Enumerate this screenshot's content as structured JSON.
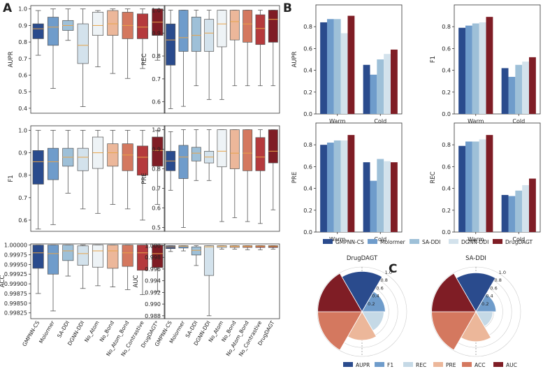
{
  "panel_labels": [
    "A",
    "B",
    "C"
  ],
  "colors": {
    "GMPNN-CS": "#2a4b8d",
    "Molormer": "#6f9ccb",
    "SA-DDI": "#9ec0d8",
    "DGNN-DDI": "#d3e2ec",
    "No_Atom": "#eef3f6",
    "No_Bond": "#ecb79a",
    "No_Atom_Bond": "#d4785f",
    "No_Contrastive": "#b53a3d",
    "DrugDAGT": "#7f1d25",
    "median": "#e8a44a",
    "whisker": "#555555",
    "axis": "#333333",
    "grid": "#cccccc"
  },
  "chart_data": [
    {
      "type": "box",
      "id": "A-AUPR",
      "ylabel": "AUPR",
      "ylim": [
        0.37,
        1.02
      ],
      "yticks": [
        "0.4",
        "0.5",
        "0.6",
        "0.7",
        "0.8",
        "0.9",
        "1.0"
      ],
      "ytick_values": [
        0.4,
        0.5,
        0.6,
        0.7,
        0.8,
        0.9,
        1.0
      ],
      "categories": [],
      "boxes": [
        {
          "name": "GMPNN-CS",
          "min": 0.72,
          "q1": 0.82,
          "median": 0.88,
          "q3": 0.91,
          "max": 0.99
        },
        {
          "name": "Molormer",
          "min": 0.52,
          "q1": 0.78,
          "median": 0.89,
          "q3": 0.95,
          "max": 1.0
        },
        {
          "name": "SA-DDI",
          "min": 0.81,
          "q1": 0.87,
          "median": 0.9,
          "q3": 0.93,
          "max": 1.0
        },
        {
          "name": "DGNN-DDI",
          "min": 0.41,
          "q1": 0.67,
          "median": 0.78,
          "q3": 0.91,
          "max": 1.0
        },
        {
          "name": "No_Atom",
          "min": 0.65,
          "q1": 0.84,
          "median": 0.9,
          "q3": 0.98,
          "max": 0.99
        },
        {
          "name": "No_Bond",
          "min": 0.61,
          "q1": 0.84,
          "median": 0.91,
          "q3": 0.99,
          "max": 1.0
        },
        {
          "name": "No_Atom_Bond",
          "min": 0.58,
          "q1": 0.82,
          "median": 0.9,
          "q3": 0.98,
          "max": 1.0
        },
        {
          "name": "No_Contrastive",
          "min": 0.64,
          "q1": 0.82,
          "median": 0.89,
          "q3": 0.97,
          "max": 1.0
        },
        {
          "name": "DrugDAGT",
          "min": 0.69,
          "q1": 0.84,
          "median": 0.92,
          "q3": 1.0,
          "max": 1.0
        }
      ]
    },
    {
      "type": "box",
      "id": "A-REC",
      "ylabel": "REC",
      "ylim": [
        0.55,
        1.02
      ],
      "yticks": [
        "0.6",
        "0.7",
        "0.8",
        "0.9",
        "1.0"
      ],
      "ytick_values": [
        0.6,
        0.7,
        0.8,
        0.9,
        1.0
      ],
      "categories": [],
      "boxes": [
        {
          "name": "GMPNN-CS",
          "min": 0.57,
          "q1": 0.76,
          "median": 0.87,
          "q3": 0.94,
          "max": 1.0
        },
        {
          "name": "Molormer",
          "min": 0.58,
          "q1": 0.82,
          "median": 0.88,
          "q3": 1.0,
          "max": 1.0
        },
        {
          "name": "SA-DDI",
          "min": 0.67,
          "q1": 0.82,
          "median": 0.89,
          "q3": 0.97,
          "max": 1.0
        },
        {
          "name": "DGNN-DDI",
          "min": 0.61,
          "q1": 0.82,
          "median": 0.9,
          "q3": 0.96,
          "max": 1.0
        },
        {
          "name": "No_Atom",
          "min": 0.61,
          "q1": 0.84,
          "median": 0.94,
          "q3": 1.0,
          "max": 1.0
        },
        {
          "name": "No_Bond",
          "min": 0.67,
          "q1": 0.87,
          "median": 0.95,
          "q3": 1.0,
          "max": 1.0
        },
        {
          "name": "No_Atom_Bond",
          "min": 0.67,
          "q1": 0.86,
          "median": 0.94,
          "q3": 1.0,
          "max": 1.0
        },
        {
          "name": "No_Contrastive",
          "min": 0.67,
          "q1": 0.85,
          "median": 0.92,
          "q3": 0.98,
          "max": 1.0
        },
        {
          "name": "DrugDAGT",
          "min": 0.67,
          "q1": 0.86,
          "median": 0.96,
          "q3": 1.0,
          "max": 1.0
        }
      ]
    },
    {
      "type": "box",
      "id": "A-F1",
      "ylabel": "F1",
      "ylim": [
        0.55,
        1.02
      ],
      "yticks": [
        "0.6",
        "0.7",
        "0.8",
        "0.9",
        "1.0"
      ],
      "ytick_values": [
        0.6,
        0.7,
        0.8,
        0.9,
        1.0
      ],
      "categories": [],
      "boxes": [
        {
          "name": "GMPNN-CS",
          "min": 0.56,
          "q1": 0.76,
          "median": 0.86,
          "q3": 0.91,
          "max": 1.0
        },
        {
          "name": "Molormer",
          "min": 0.58,
          "q1": 0.78,
          "median": 0.86,
          "q3": 0.92,
          "max": 1.0
        },
        {
          "name": "SA-DDI",
          "min": 0.72,
          "q1": 0.84,
          "median": 0.88,
          "q3": 0.92,
          "max": 1.0
        },
        {
          "name": "DGNN-DDI",
          "min": 0.65,
          "q1": 0.82,
          "median": 0.88,
          "q3": 0.92,
          "max": 1.0
        },
        {
          "name": "No_Atom",
          "min": 0.63,
          "q1": 0.83,
          "median": 0.9,
          "q3": 0.97,
          "max": 1.0
        },
        {
          "name": "No_Bond",
          "min": 0.67,
          "q1": 0.84,
          "median": 0.9,
          "q3": 0.94,
          "max": 1.0
        },
        {
          "name": "No_Atom_Bond",
          "min": 0.65,
          "q1": 0.82,
          "median": 0.89,
          "q3": 0.94,
          "max": 1.0
        },
        {
          "name": "No_Contrastive",
          "min": 0.6,
          "q1": 0.8,
          "median": 0.88,
          "q3": 0.93,
          "max": 1.0
        },
        {
          "name": "DrugDAGT",
          "min": 0.67,
          "q1": 0.84,
          "median": 0.91,
          "q3": 0.97,
          "max": 1.0
        }
      ]
    },
    {
      "type": "box",
      "id": "A-PRE",
      "ylabel": "PRE",
      "ylim": [
        0.48,
        1.02
      ],
      "yticks": [
        "0.5",
        "0.6",
        "0.7",
        "0.8",
        "0.9",
        "1.0"
      ],
      "ytick_values": [
        0.5,
        0.6,
        0.7,
        0.8,
        0.9,
        1.0
      ],
      "categories": [],
      "boxes": [
        {
          "name": "GMPNN-CS",
          "min": 0.69,
          "q1": 0.79,
          "median": 0.84,
          "q3": 0.89,
          "max": 0.99
        },
        {
          "name": "Molormer",
          "min": 0.5,
          "q1": 0.75,
          "median": 0.86,
          "q3": 0.92,
          "max": 1.0
        },
        {
          "name": "SA-DDI",
          "min": 0.74,
          "q1": 0.84,
          "median": 0.88,
          "q3": 0.91,
          "max": 1.0
        },
        {
          "name": "DGNN-DDI",
          "min": 0.74,
          "q1": 0.83,
          "median": 0.86,
          "q3": 0.89,
          "max": 1.0
        },
        {
          "name": "No_Atom",
          "min": 0.53,
          "q1": 0.81,
          "median": 0.89,
          "q3": 1.0,
          "max": 1.0
        },
        {
          "name": "No_Bond",
          "min": 0.55,
          "q1": 0.8,
          "median": 0.88,
          "q3": 1.0,
          "max": 1.0
        },
        {
          "name": "No_Atom_Bond",
          "min": 0.53,
          "q1": 0.79,
          "median": 0.88,
          "q3": 1.0,
          "max": 1.0
        },
        {
          "name": "No_Contrastive",
          "min": 0.52,
          "q1": 0.79,
          "median": 0.86,
          "q3": 0.96,
          "max": 1.0
        },
        {
          "name": "DrugDAGT",
          "min": 0.59,
          "q1": 0.83,
          "median": 0.89,
          "q3": 1.0,
          "max": 1.0
        }
      ]
    },
    {
      "type": "box",
      "id": "A-ACC",
      "ylabel": "ACC",
      "ylim": [
        0.9981,
        1.00003
      ],
      "yticks": [
        "0.99825",
        "0.99850",
        "0.99875",
        "0.99900",
        "0.99925",
        "0.99950",
        "0.99975",
        "1.00000"
      ],
      "ytick_values": [
        0.99825,
        0.9985,
        0.99875,
        0.999,
        0.99925,
        0.9995,
        0.99975,
        1.0
      ],
      "categories": [
        "GMPNN-CS",
        "Molormer",
        "SA-DDI",
        "DGNN-DDI",
        "No_Atom",
        "No_Bond",
        "No_Atom_Bond",
        "No_Contrastive",
        "DrugDAGT*"
      ],
      "boxes": [
        {
          "name": "GMPNN-CS",
          "min": 0.99875,
          "q1": 0.9994,
          "median": 0.9998,
          "q3": 1.0,
          "max": 1.0
        },
        {
          "name": "Molormer",
          "min": 0.9983,
          "q1": 0.99925,
          "median": 0.99978,
          "q3": 1.0,
          "max": 1.0
        },
        {
          "name": "SA-DDI",
          "min": 0.9992,
          "q1": 0.9996,
          "median": 0.99985,
          "q3": 1.0,
          "max": 1.0
        },
        {
          "name": "DGNN-DDI",
          "min": 0.99888,
          "q1": 0.99948,
          "median": 0.99978,
          "q3": 0.99998,
          "max": 1.0
        },
        {
          "name": "No_Atom",
          "min": 0.99895,
          "q1": 0.99943,
          "median": 0.99985,
          "q3": 1.0,
          "max": 1.0
        },
        {
          "name": "No_Bond",
          "min": 0.99892,
          "q1": 0.9994,
          "median": 0.99985,
          "q3": 1.0,
          "max": 1.0
        },
        {
          "name": "No_Atom_Bond",
          "min": 0.99885,
          "q1": 0.99945,
          "median": 0.9998,
          "q3": 1.0,
          "max": 1.0
        },
        {
          "name": "No_Contrastive",
          "min": 0.99872,
          "q1": 0.99935,
          "median": 0.9998,
          "q3": 1.0,
          "max": 1.0
        },
        {
          "name": "DrugDAGT",
          "min": 0.9988,
          "q1": 0.99942,
          "median": 0.99978,
          "q3": 1.0,
          "max": 1.0
        }
      ]
    },
    {
      "type": "box",
      "id": "A-AUC",
      "ylabel": "AUC",
      "ylim": [
        0.9875,
        1.0003
      ],
      "yticks": [
        "0.988",
        "0.990",
        "0.992",
        "0.994",
        "0.996",
        "0.998",
        "1.000"
      ],
      "ytick_values": [
        0.988,
        0.99,
        0.992,
        0.994,
        0.996,
        0.998,
        1.0
      ],
      "categories": [
        "GMPNN-CS",
        "Molormer",
        "SA-DDI",
        "DGNN-DDI",
        "No_Atom",
        "No_Bond",
        "No_Atom_Bond",
        "No_Contrastive",
        "DrugDAGT"
      ],
      "boxes": [
        {
          "name": "GMPNN-CS",
          "min": 0.999,
          "q1": 0.9995,
          "median": 0.9998,
          "q3": 1.0,
          "max": 1.0
        },
        {
          "name": "Molormer",
          "min": 0.9991,
          "q1": 0.9996,
          "median": 0.9999,
          "q3": 1.0,
          "max": 1.0
        },
        {
          "name": "SA-DDI",
          "min": 0.9966,
          "q1": 0.9984,
          "median": 0.9992,
          "q3": 0.9998,
          "max": 1.0
        },
        {
          "name": "DGNN-DDI",
          "min": 0.988,
          "q1": 0.9949,
          "median": 0.9998,
          "q3": 1.0,
          "max": 1.0
        },
        {
          "name": "No_Atom",
          "min": 0.9994,
          "q1": 0.9997,
          "median": 0.9999,
          "q3": 1.0,
          "max": 1.0
        },
        {
          "name": "No_Bond",
          "min": 0.9994,
          "q1": 0.9997,
          "median": 0.9999,
          "q3": 1.0,
          "max": 1.0
        },
        {
          "name": "No_Atom_Bond",
          "min": 0.9993,
          "q1": 0.9997,
          "median": 0.9999,
          "q3": 1.0,
          "max": 1.0
        },
        {
          "name": "No_Contrastive",
          "min": 0.9993,
          "q1": 0.9997,
          "median": 0.9999,
          "q3": 1.0,
          "max": 1.0
        },
        {
          "name": "DrugDAGT",
          "min": 0.9994,
          "q1": 0.9997,
          "median": 0.9999,
          "q3": 1.0,
          "max": 1.0
        }
      ]
    },
    {
      "type": "bar",
      "id": "B-AUPR",
      "ylabel": "AUPR",
      "ylim": [
        0,
        1.0
      ],
      "yticks": [
        "0.0",
        "0.2",
        "0.4",
        "0.6",
        "0.8"
      ],
      "ytick_values": [
        0,
        0.2,
        0.4,
        0.6,
        0.8
      ],
      "categories": [
        "Warm",
        "Cold"
      ],
      "series": [
        {
          "name": "GMPNN-CS",
          "values": [
            0.84,
            0.45
          ]
        },
        {
          "name": "Molormer",
          "values": [
            0.87,
            0.36
          ]
        },
        {
          "name": "SA-DDI",
          "values": [
            0.87,
            0.5
          ]
        },
        {
          "name": "DGNN-DDI",
          "values": [
            0.74,
            0.55
          ]
        },
        {
          "name": "DrugDAGT",
          "values": [
            0.9,
            0.59
          ]
        }
      ]
    },
    {
      "type": "bar",
      "id": "B-F1",
      "ylabel": "F1",
      "ylim": [
        0,
        1.0
      ],
      "yticks": [
        "0.0",
        "0.2",
        "0.4",
        "0.6",
        "0.8"
      ],
      "ytick_values": [
        0,
        0.2,
        0.4,
        0.6,
        0.8
      ],
      "categories": [
        "Warm",
        "Cold"
      ],
      "series": [
        {
          "name": "GMPNN-CS",
          "values": [
            0.79,
            0.42
          ]
        },
        {
          "name": "Molormer",
          "values": [
            0.81,
            0.34
          ]
        },
        {
          "name": "SA-DDI",
          "values": [
            0.83,
            0.45
          ]
        },
        {
          "name": "DGNN-DDI",
          "values": [
            0.84,
            0.48
          ]
        },
        {
          "name": "DrugDAGT",
          "values": [
            0.89,
            0.52
          ]
        }
      ]
    },
    {
      "type": "bar",
      "id": "B-PRE",
      "ylabel": "PRE",
      "ylim": [
        0,
        1.0
      ],
      "yticks": [
        "0.0",
        "0.2",
        "0.4",
        "0.6",
        "0.8"
      ],
      "ytick_values": [
        0,
        0.2,
        0.4,
        0.6,
        0.8
      ],
      "categories": [
        "Warm",
        "Cold"
      ],
      "series": [
        {
          "name": "GMPNN-CS",
          "values": [
            0.8,
            0.64
          ]
        },
        {
          "name": "Molormer",
          "values": [
            0.82,
            0.47
          ]
        },
        {
          "name": "SA-DDI",
          "values": [
            0.84,
            0.67
          ]
        },
        {
          "name": "DGNN-DDI",
          "values": [
            0.84,
            0.65
          ]
        },
        {
          "name": "DrugDAGT",
          "values": [
            0.89,
            0.64
          ]
        }
      ]
    },
    {
      "type": "bar",
      "id": "B-REC",
      "ylabel": "REC",
      "ylim": [
        0,
        1.0
      ],
      "yticks": [
        "0.0",
        "0.2",
        "0.4",
        "0.6",
        "0.8"
      ],
      "ytick_values": [
        0,
        0.2,
        0.4,
        0.6,
        0.8
      ],
      "categories": [
        "Warm",
        "Cold"
      ],
      "series": [
        {
          "name": "GMPNN-CS",
          "values": [
            0.79,
            0.34
          ]
        },
        {
          "name": "Molormer",
          "values": [
            0.83,
            0.33
          ]
        },
        {
          "name": "SA-DDI",
          "values": [
            0.83,
            0.38
          ]
        },
        {
          "name": "DGNN-DDI",
          "values": [
            0.85,
            0.43
          ]
        },
        {
          "name": "DrugDAGT",
          "values": [
            0.89,
            0.49
          ]
        }
      ]
    },
    {
      "type": "legend",
      "id": "B-legend",
      "entries": [
        "GMPNN-CS",
        "Molormer",
        "SA-DDI",
        "DGNN-DDI",
        "DrugDAGT"
      ]
    },
    {
      "type": "polar-bar",
      "id": "C-DrugDAGT",
      "title": "DrugDAGT",
      "rticks": [
        "0.2",
        "0.4",
        "0.6",
        "0.8",
        "1.0"
      ],
      "rtick_values": [
        0.2,
        0.4,
        0.6,
        0.8,
        1.0
      ],
      "metrics": [
        "AUPR",
        "F1",
        "REC",
        "PRE",
        "ACC",
        "AUC"
      ],
      "values": [
        0.9,
        0.52,
        0.49,
        0.64,
        0.99,
        0.99
      ]
    },
    {
      "type": "polar-bar",
      "id": "C-SA-DDI",
      "title": "SA-DDI",
      "rticks": [
        "0.2",
        "0.4",
        "0.6",
        "0.8",
        "1.0"
      ],
      "rtick_values": [
        0.2,
        0.4,
        0.6,
        0.8,
        1.0
      ],
      "metrics": [
        "AUPR",
        "F1",
        "REC",
        "PRE",
        "ACC",
        "AUC"
      ],
      "values": [
        0.87,
        0.45,
        0.38,
        0.67,
        0.99,
        0.99
      ]
    },
    {
      "type": "legend",
      "id": "C-legend",
      "entries": [
        "AUPR",
        "F1",
        "REC",
        "PRE",
        "ACC",
        "AUC"
      ],
      "entry_colors": [
        "#2a4b8d",
        "#6f9ccb",
        "#c5d9e6",
        "#ecb79a",
        "#d4785f",
        "#7f1d25"
      ]
    }
  ]
}
